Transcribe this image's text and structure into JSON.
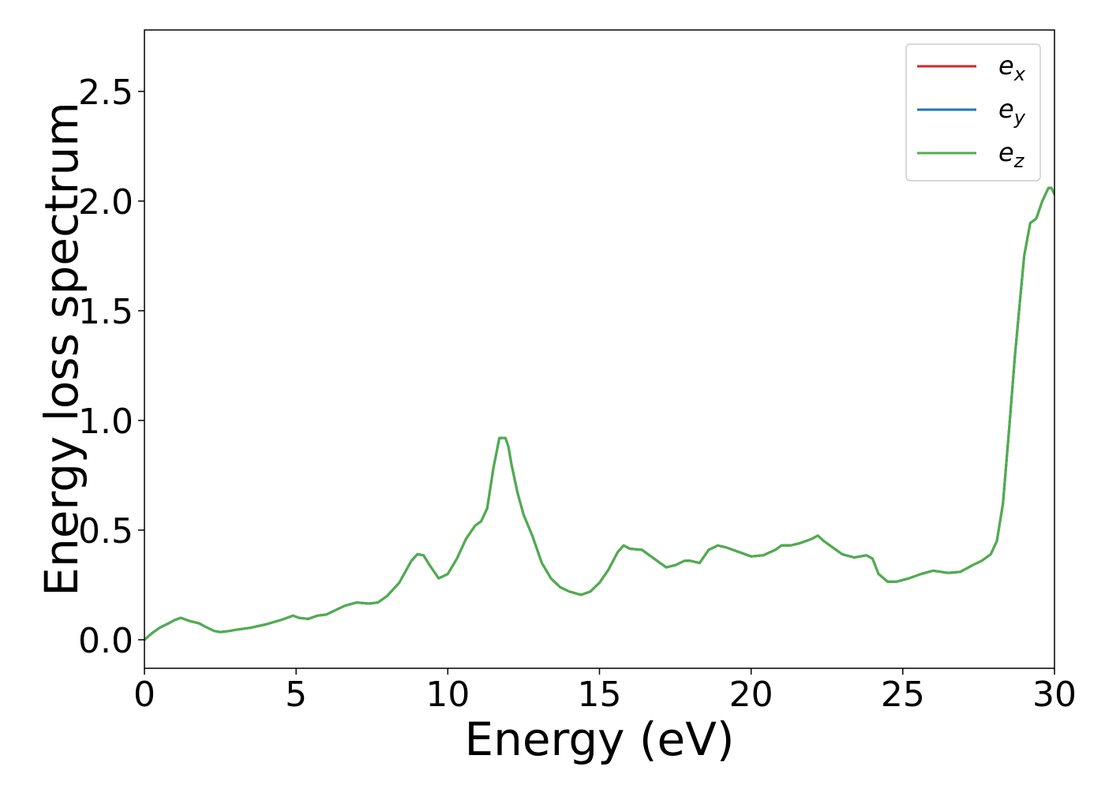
{
  "chart_data": {
    "type": "line",
    "title": "",
    "xlabel": "Energy (eV)",
    "ylabel": "Energy loss spectrum",
    "xlim": [
      0,
      30
    ],
    "ylim": [
      -0.13,
      2.78
    ],
    "xticks": [
      0,
      5,
      10,
      15,
      20,
      25,
      30
    ],
    "xtick_labels": [
      "0",
      "5",
      "10",
      "15",
      "20",
      "25",
      "30"
    ],
    "yticks": [
      0.0,
      0.5,
      1.0,
      1.5,
      2.0,
      2.5
    ],
    "ytick_labels": [
      "0.0",
      "0.5",
      "1.0",
      "1.5",
      "2.0",
      "2.5"
    ],
    "grid": false,
    "legend_position": "top-right",
    "x": [
      0,
      0.25,
      0.5,
      0.8,
      1.0,
      1.2,
      1.5,
      1.8,
      2.0,
      2.3,
      2.5,
      2.8,
      3.0,
      3.5,
      4.0,
      4.5,
      4.9,
      5.1,
      5.4,
      5.7,
      6.0,
      6.3,
      6.6,
      7.0,
      7.4,
      7.7,
      8.0,
      8.4,
      8.8,
      9.0,
      9.2,
      9.4,
      9.7,
      10.0,
      10.3,
      10.6,
      10.9,
      11.1,
      11.3,
      11.5,
      11.7,
      11.9,
      12.0,
      12.1,
      12.3,
      12.5,
      12.8,
      13.1,
      13.4,
      13.7,
      14.0,
      14.4,
      14.7,
      15.0,
      15.3,
      15.6,
      15.8,
      16.0,
      16.4,
      16.8,
      17.2,
      17.5,
      17.8,
      18.0,
      18.3,
      18.6,
      18.9,
      19.2,
      19.6,
      20.0,
      20.4,
      20.8,
      21.0,
      21.3,
      21.6,
      22.0,
      22.2,
      22.4,
      22.7,
      23.0,
      23.4,
      23.8,
      24.0,
      24.2,
      24.5,
      24.8,
      25.2,
      25.6,
      26.0,
      26.5,
      26.9,
      27.3,
      27.6,
      27.9,
      28.1,
      28.3,
      28.5,
      28.7,
      28.9,
      29.0,
      29.2,
      29.4,
      29.6,
      29.8,
      29.9,
      30.0
    ],
    "series": [
      {
        "name": "e_x",
        "color": "#d62728",
        "values": [
          0.0,
          0.03,
          0.055,
          0.075,
          0.09,
          0.1,
          0.085,
          0.075,
          0.06,
          0.04,
          0.035,
          0.04,
          0.045,
          0.055,
          0.07,
          0.09,
          0.11,
          0.1,
          0.095,
          0.11,
          0.115,
          0.135,
          0.155,
          0.17,
          0.165,
          0.17,
          0.2,
          0.26,
          0.36,
          0.39,
          0.385,
          0.34,
          0.28,
          0.3,
          0.37,
          0.46,
          0.52,
          0.54,
          0.6,
          0.78,
          0.92,
          0.92,
          0.88,
          0.8,
          0.67,
          0.57,
          0.47,
          0.35,
          0.28,
          0.24,
          0.22,
          0.205,
          0.22,
          0.26,
          0.32,
          0.4,
          0.43,
          0.415,
          0.41,
          0.37,
          0.33,
          0.34,
          0.36,
          0.36,
          0.35,
          0.41,
          0.43,
          0.42,
          0.4,
          0.38,
          0.385,
          0.41,
          0.43,
          0.43,
          0.44,
          0.46,
          0.475,
          0.45,
          0.42,
          0.39,
          0.375,
          0.385,
          0.37,
          0.3,
          0.265,
          0.265,
          0.28,
          0.3,
          0.315,
          0.305,
          0.31,
          0.34,
          0.36,
          0.39,
          0.45,
          0.62,
          0.95,
          1.3,
          1.6,
          1.75,
          1.9,
          1.92,
          2.0,
          2.06,
          2.06,
          2.03
        ]
      },
      {
        "name": "e_y",
        "color": "#1f77b4",
        "values": [
          0.0,
          0.03,
          0.055,
          0.075,
          0.09,
          0.1,
          0.085,
          0.075,
          0.06,
          0.04,
          0.035,
          0.04,
          0.045,
          0.055,
          0.07,
          0.09,
          0.11,
          0.1,
          0.095,
          0.11,
          0.115,
          0.135,
          0.155,
          0.17,
          0.165,
          0.17,
          0.2,
          0.26,
          0.36,
          0.39,
          0.385,
          0.34,
          0.28,
          0.3,
          0.37,
          0.46,
          0.52,
          0.54,
          0.6,
          0.78,
          0.92,
          0.92,
          0.88,
          0.8,
          0.67,
          0.57,
          0.47,
          0.35,
          0.28,
          0.24,
          0.22,
          0.205,
          0.22,
          0.26,
          0.32,
          0.4,
          0.43,
          0.415,
          0.41,
          0.37,
          0.33,
          0.34,
          0.36,
          0.36,
          0.35,
          0.41,
          0.43,
          0.42,
          0.4,
          0.38,
          0.385,
          0.41,
          0.43,
          0.43,
          0.44,
          0.46,
          0.475,
          0.45,
          0.42,
          0.39,
          0.375,
          0.385,
          0.37,
          0.3,
          0.265,
          0.265,
          0.28,
          0.3,
          0.315,
          0.305,
          0.31,
          0.34,
          0.36,
          0.39,
          0.45,
          0.62,
          0.95,
          1.3,
          1.6,
          1.75,
          1.9,
          1.92,
          2.0,
          2.06,
          2.06,
          2.03
        ]
      },
      {
        "name": "e_z",
        "color": "#4daf4a",
        "values": [
          0.0,
          0.03,
          0.055,
          0.075,
          0.09,
          0.1,
          0.085,
          0.075,
          0.06,
          0.04,
          0.035,
          0.04,
          0.045,
          0.055,
          0.07,
          0.09,
          0.11,
          0.1,
          0.095,
          0.11,
          0.115,
          0.135,
          0.155,
          0.17,
          0.165,
          0.17,
          0.2,
          0.26,
          0.36,
          0.39,
          0.385,
          0.34,
          0.28,
          0.3,
          0.37,
          0.46,
          0.52,
          0.54,
          0.6,
          0.78,
          0.92,
          0.92,
          0.88,
          0.8,
          0.67,
          0.57,
          0.47,
          0.35,
          0.28,
          0.24,
          0.22,
          0.205,
          0.22,
          0.26,
          0.32,
          0.4,
          0.43,
          0.415,
          0.41,
          0.37,
          0.33,
          0.34,
          0.36,
          0.36,
          0.35,
          0.41,
          0.43,
          0.42,
          0.4,
          0.38,
          0.385,
          0.41,
          0.43,
          0.43,
          0.44,
          0.46,
          0.475,
          0.45,
          0.42,
          0.39,
          0.375,
          0.385,
          0.37,
          0.3,
          0.265,
          0.265,
          0.28,
          0.3,
          0.315,
          0.305,
          0.31,
          0.34,
          0.36,
          0.39,
          0.45,
          0.62,
          0.95,
          1.3,
          1.6,
          1.75,
          1.9,
          1.92,
          2.0,
          2.06,
          2.06,
          2.03
        ]
      }
    ],
    "legend": [
      {
        "base": "e",
        "sub": "x"
      },
      {
        "base": "e",
        "sub": "y"
      },
      {
        "base": "e",
        "sub": "z"
      }
    ]
  }
}
